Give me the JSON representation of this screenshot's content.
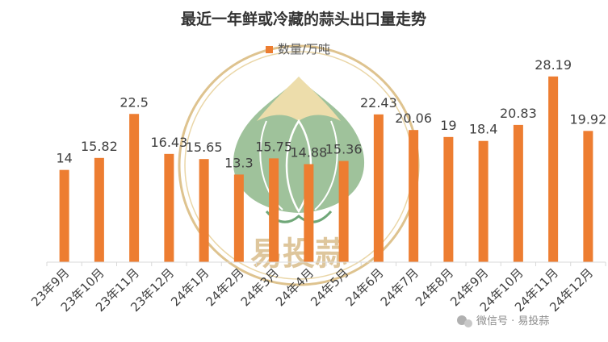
{
  "chart_data": {
    "type": "bar",
    "title": "最近一年鲜或冷藏的蒜头出口量走势",
    "legend": {
      "label": "数量/万吨",
      "position": "top"
    },
    "series": [
      {
        "name": "数量/万吨",
        "color": "#ed7d31",
        "values": [
          14,
          15.82,
          22.5,
          16.43,
          15.65,
          13.3,
          15.75,
          14.88,
          15.36,
          22.43,
          20.06,
          19,
          18.4,
          20.83,
          28.19,
          19.92
        ]
      }
    ],
    "value_labels": [
      "14",
      "15.82",
      "22.5",
      "16.43",
      "15.65",
      "13.3",
      "15.75",
      "14.88",
      "15.36",
      "22.43",
      "20.06",
      "19",
      "18.4",
      "20.83",
      "28.19",
      "19.92"
    ],
    "categories": [
      "23年9月",
      "23年10月",
      "23年11月",
      "23年12月",
      "24年1月",
      "24年2月",
      "24年3月",
      "24年4月",
      "24年5月",
      "24年6月",
      "24年7月",
      "24年8月",
      "24年9月",
      "24年10月",
      "24年11月",
      "24年12月"
    ],
    "ylim": [
      0,
      30
    ],
    "grid": false
  },
  "watermark": {
    "text": "易投蒜"
  },
  "source_note": {
    "text": "微信号 · 易投蒜"
  }
}
